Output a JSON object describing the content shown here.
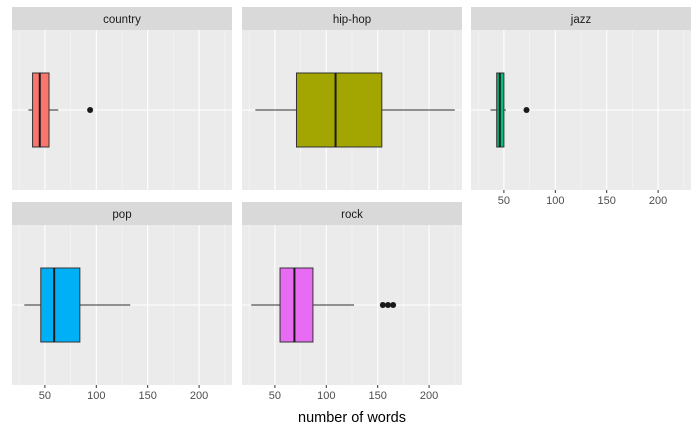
{
  "chart_data": {
    "type": "boxplot",
    "title": "",
    "xlabel": "number of words",
    "ylabel": "",
    "xlim": [
      18,
      232
    ],
    "x_ticks": [
      50,
      100,
      150,
      200
    ],
    "x_tick_labels": [
      "50",
      "100",
      "150",
      "200"
    ],
    "grid": true,
    "legend": "none",
    "facets": [
      {
        "name": "country",
        "color": "#F8766D",
        "min": 34,
        "q1": 38,
        "median": 45,
        "q3": 54,
        "max": 63,
        "outliers": [
          94
        ]
      },
      {
        "name": "hip-hop",
        "color": "#A3A500",
        "min": 31,
        "q1": 71,
        "median": 109,
        "q3": 154,
        "max": 225,
        "outliers": []
      },
      {
        "name": "jazz",
        "color": "#00BF7D",
        "min": 37,
        "q1": 43,
        "median": 46,
        "q3": 50,
        "max": 52,
        "outliers": [
          72
        ]
      },
      {
        "name": "pop",
        "color": "#00B0F6",
        "min": 30,
        "q1": 46,
        "median": 59,
        "q3": 84,
        "max": 133,
        "outliers": []
      },
      {
        "name": "rock",
        "color": "#E76BF3",
        "min": 27,
        "q1": 55,
        "median": 69,
        "q3": 87,
        "max": 127,
        "outliers": [
          155,
          160,
          165
        ]
      }
    ]
  }
}
